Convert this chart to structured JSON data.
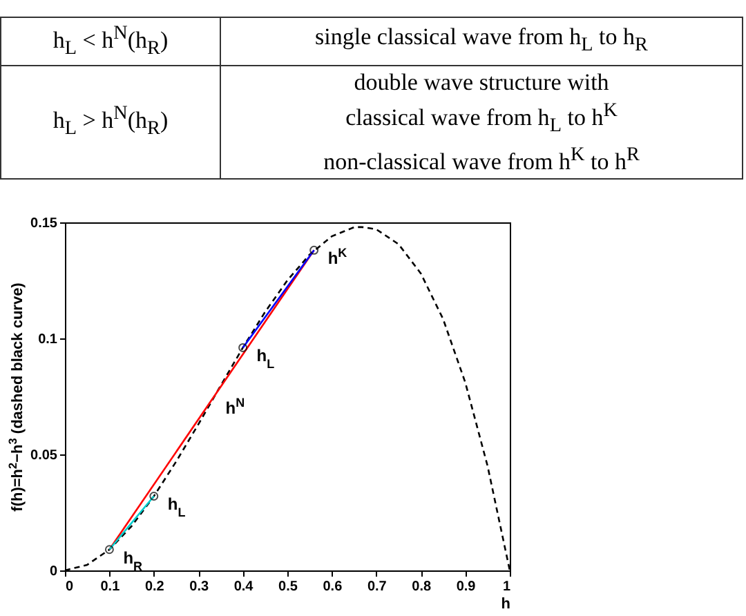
{
  "chart_data": {
    "type": "line",
    "xlabel": "h",
    "ylabel": "f(h)=h$^{2}$−h$^{3}$ (dashed black curve)",
    "xlim": [
      0,
      1
    ],
    "ylim": [
      0,
      0.15
    ],
    "xticks": [
      0,
      0.1,
      0.2,
      0.3,
      0.4,
      0.5,
      0.6,
      0.7,
      0.8,
      0.9,
      1
    ],
    "yticks": [
      0,
      0.05,
      0.1,
      0.15
    ],
    "grid": false,
    "annotations": [
      "h$_{L}$ < h$^{N}$(h$_{R}$)",
      "single classical wave from h$_{L}$ to h$_{R}$",
      "h$_{L}$ > h$^{N}$(h$_{R}$)",
      "double wave structure with",
      "classical wave from h$_{L}$ to h$^{K}$",
      "non-classical wave from h$^{K}$ to h$^{R}$",
      {
        "text": "h$_{R}$",
        "x": 0.1,
        "y": 0.009
      },
      {
        "text": "h$_{L}$",
        "x": 0.2,
        "y": 0.032
      },
      {
        "text": "h$^{N}$",
        "x": 0.33,
        "y": 0.0735
      },
      {
        "text": "h$_{L}$",
        "x": 0.4,
        "y": 0.096
      },
      {
        "text": "h$^{K}$",
        "x": 0.56,
        "y": 0.138
      }
    ],
    "series": [
      {
        "color": "#000000",
        "line_style": "dashed",
        "x": [
          0,
          0.05,
          0.1,
          0.15,
          0.2,
          0.25,
          0.3,
          0.35,
          0.4,
          0.45,
          0.5,
          0.55,
          0.6,
          0.65,
          0.667,
          0.7,
          0.75,
          0.8,
          0.85,
          0.9,
          0.95,
          1
        ],
        "values": [
          0,
          0.0024,
          0.009,
          0.0191,
          0.032,
          0.0469,
          0.063,
          0.0796,
          0.096,
          0.1114,
          0.125,
          0.1361,
          0.144,
          0.1479,
          0.148,
          0.147,
          0.1406,
          0.128,
          0.1084,
          0.081,
          0.0451,
          0
        ]
      },
      {
        "color": "#ff0000",
        "line_style": "solid",
        "x": [
          0.1,
          0.56
        ],
        "values": [
          0.009,
          0.138
        ]
      },
      {
        "color": "#00cccc",
        "line_style": "solid",
        "x": [
          0.1,
          0.2
        ],
        "values": [
          0.009,
          0.032
        ]
      },
      {
        "color": "#0000ff",
        "line_style": "solid",
        "x": [
          0.4,
          0.56
        ],
        "values": [
          0.096,
          0.138
        ]
      },
      {
        "type": "scatter",
        "color": "#000000",
        "marker": "circle",
        "x": [
          0.1,
          0.2,
          0.4,
          0.56
        ],
        "values": [
          0.009,
          0.032,
          0.096,
          0.138
        ]
      }
    ]
  }
}
